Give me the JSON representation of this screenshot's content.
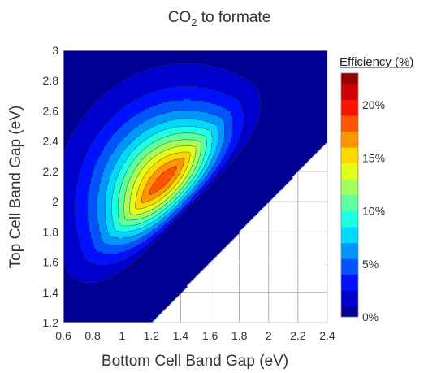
{
  "chart_data": {
    "type": "contour",
    "title": "CO2 to formate",
    "title_main": "CO",
    "title_sub": "2",
    "title_rest": " to formate",
    "xlabel": "Bottom Cell Band Gap (eV)",
    "ylabel": "Top Cell Band Gap (eV)",
    "xlim": [
      0.6,
      2.4
    ],
    "ylim": [
      1.2,
      3.0
    ],
    "x_ticks": [
      "0.6",
      "0.8",
      "1",
      "1.2",
      "1.4",
      "1.6",
      "1.8",
      "2",
      "2.2",
      "2.4"
    ],
    "y_ticks": [
      "1.2",
      "1.4",
      "1.6",
      "1.8",
      "2",
      "2.2",
      "2.4",
      "2.6",
      "2.8",
      "3"
    ],
    "grid": true,
    "valid_region": "top cell band gap above bottom cell band gap",
    "peak": {
      "x": 1.44,
      "y": 1.96,
      "value": 22
    },
    "z_range": [
      0,
      23
    ],
    "contour_levels": [
      1,
      2.5,
      4,
      5.5,
      7,
      8.5,
      10,
      11.5,
      13,
      14.5,
      16,
      17.5,
      19,
      20.5,
      22
    ],
    "colorbar": {
      "title": "Efficiency (%)",
      "ticks": [
        "0%",
        "5%",
        "10%",
        "15%",
        "20%"
      ],
      "tick_values": [
        0,
        5,
        10,
        15,
        20
      ],
      "max": 23
    },
    "colormap": [
      "#00007f",
      "#0000ff",
      "#007fff",
      "#00ffff",
      "#7fff7f",
      "#ffff00",
      "#ff7f00",
      "#ff0000",
      "#7f0000"
    ],
    "contour_line_color": "#333333",
    "grid_color": "#9a9a9a"
  }
}
